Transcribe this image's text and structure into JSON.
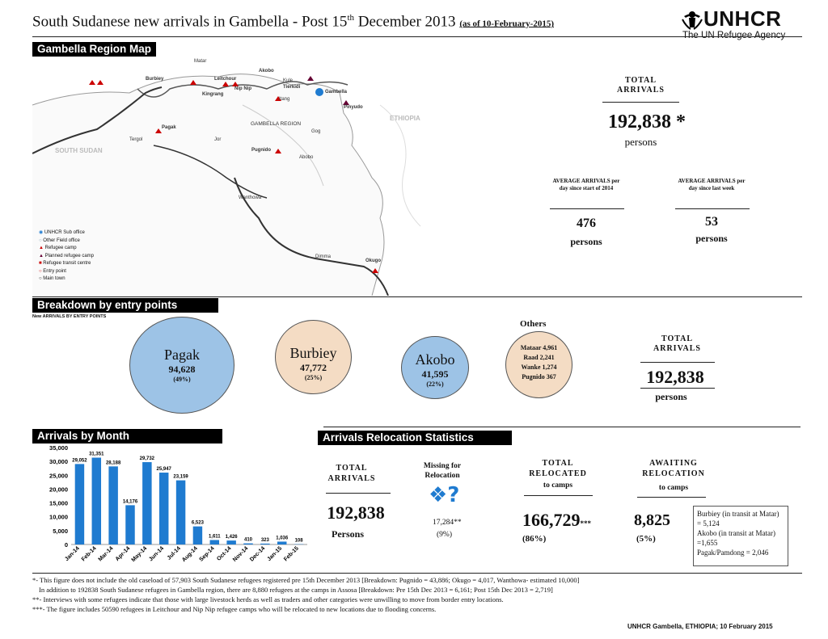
{
  "header": {
    "title_main": "South Sudanese new arrivals in Gambella - Post 15",
    "title_sup": "th",
    "title_end": " December 2013 ",
    "as_of": "(as of 10-February-2015)",
    "logo_name": "UNHCR",
    "logo_tagline": "The UN Refugee Agency"
  },
  "map_section": {
    "heading": "Gambella Region Map",
    "countries": {
      "south_sudan": "SOUTH SUDAN",
      "ethiopia": "ETHIOPIA",
      "region": "GAMBELLA REGION"
    },
    "places": [
      "Pagak",
      "Matar",
      "Burbiey",
      "Akobo",
      "Tergol",
      "Gambella",
      "Kule",
      "Tierkidi",
      "Pinyudo",
      "Leitchour",
      "Nip Nip",
      "Kingrang",
      "Pugnido",
      "Okugo",
      "Wanthowa",
      "Dimma",
      "Abobo",
      "Gog",
      "Jor",
      "Itang"
    ],
    "legend": [
      "UNHCR Sub office",
      "Other Field office",
      "Refugee camp",
      "Planned refugee camp",
      "Refugee transit centre",
      "Entry point",
      "Main town"
    ]
  },
  "totals": {
    "label": "TOTAL ARRIVALS",
    "value": "192,838",
    "asterisk": "*",
    "unit": "persons",
    "avg_2014_label": "AVERAGE ARRIVALS per day since start of 2014",
    "avg_2014_value": "476",
    "avg_2014_unit": "persons",
    "avg_week_label": "AVERAGE ARRIVALS per day since last week",
    "avg_week_value": "53",
    "avg_week_unit": "persons"
  },
  "entry_points": {
    "heading": "Breakdown by entry points",
    "subheading": "New ARRIVALS BY ENTRY POINTS",
    "pagak": {
      "name": "Pagak",
      "value": "94,628",
      "pct": "(49%)"
    },
    "burbiey": {
      "name": "Burbiey",
      "value": "47,772",
      "pct": "(25%)"
    },
    "akobo": {
      "name": "Akobo",
      "value": "41,595",
      "pct": "(22%)"
    },
    "others_title": "Others",
    "others": [
      "Mataar 4,961",
      "Raad 2,241",
      "Wanke 1,274",
      "Pugnido 367"
    ],
    "total_label": "TOTAL ARRIVALS",
    "total_value": "192,838",
    "total_unit": "persons"
  },
  "colors": {
    "blue": "#9dc3e6",
    "beige": "#f4dcc4",
    "bar": "#1f7bd0"
  },
  "chart_section": {
    "heading": "Arrivals by Month"
  },
  "chart_data": {
    "type": "bar",
    "categories": [
      "Jan-14",
      "Feb-14",
      "Mar-14",
      "Apr-14",
      "May-14",
      "Jun-14",
      "Jul-14",
      "Aug-14",
      "Sep-14",
      "Oct-14",
      "Nov-14",
      "Dec-14",
      "Jan-15",
      "Feb-15"
    ],
    "values": [
      29052,
      31351,
      28188,
      14176,
      29732,
      25947,
      23159,
      6523,
      1611,
      1426,
      410,
      323,
      1036,
      108
    ],
    "value_labels": [
      "29,052",
      "31,351",
      "28,188",
      "14,176",
      "29,732",
      "25,947",
      "23,159",
      "6,523",
      "1,611",
      "1,426",
      "410",
      "323",
      "1,036",
      "108"
    ],
    "yticks": [
      "0",
      "5,000",
      "10,000",
      "15,000",
      "20,000",
      "25,000",
      "30,000",
      "35,000"
    ],
    "ylim": [
      0,
      35000
    ],
    "title": "",
    "xlabel": "",
    "ylabel": ""
  },
  "relocation": {
    "heading": "Arrivals Relocation Statistics",
    "total_label": "TOTAL ARRIVALS",
    "total_value": "192,838",
    "total_unit": "Persons",
    "missing_label": "Missing for Relocation",
    "missing_value": "17,284**",
    "missing_pct": "(9%)",
    "relocated_label": "TOTAL RELOCATED",
    "relocated_sub": "to camps",
    "relocated_value": "166,729",
    "relocated_mark": "***",
    "relocated_pct": "(86%)",
    "awaiting_label": "AWAITING RELOCATION",
    "awaiting_sub": "to camps",
    "awaiting_value": "8,825",
    "awaiting_pct": "(5%)",
    "breakdown": [
      "Burbiey (in transit at Matar) = 5,124",
      "Akobo (in transit at Matar) =1,655",
      "Pagak/Pamdong = 2,046"
    ]
  },
  "footnotes": [
    "*- This figure does not include the old caseload of 57,903 South Sudanese refugees registered pre 15th December 2013 [Breakdown: Pugnido = 43,886; Okugo = 4,017, Wanthowa- estimated 10,000]",
    "   In addition to 192838 South Sudanese refugees in Gambella region, there are 8,880 refugees at the camps in Assosa [Breakdown: Pre 15th Dec 2013 = 6,161; Post 15th Dec 2013 = 2,719]",
    "**- Interviews with some refugees indicate that those with large livestock herds as well as traders and other categories were unwilling to move from border entry locations.",
    "***- The figure includes 50590 refugees in Leitchour and Nip Nip refugee camps who will be relocated to new locations due to flooding concerns."
  ],
  "credit": "UNHCR Gambella, ETHIOPIA; 10 February 2015"
}
